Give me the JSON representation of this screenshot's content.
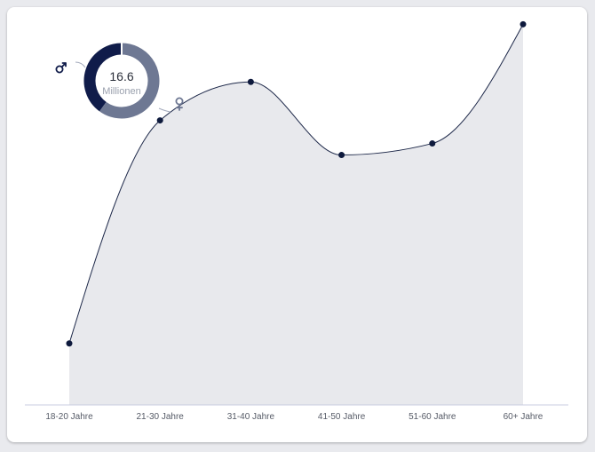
{
  "colors": {
    "background": "#e9eaee",
    "card": "#ffffff",
    "line": "#1c2748",
    "point": "#0e1a3d",
    "area": "#e8e9ed",
    "axis": "#c9cde0",
    "male": "#101c4a",
    "female": "#6e7893"
  },
  "icons": {
    "male": "male-symbol-icon",
    "female": "female-symbol-icon"
  },
  "chart_data": [
    {
      "type": "area",
      "categories": [
        "18-20 Jahre",
        "21-30 Jahre",
        "31-40 Jahre",
        "41-50 Jahre",
        "51-60 Jahre",
        "60+ Jahre"
      ],
      "values": [
        1.6,
        7.4,
        8.4,
        6.5,
        6.8,
        9.9
      ],
      "ylim": [
        0,
        10
      ],
      "grid": false,
      "legend": "none"
    },
    {
      "type": "pie",
      "subtype": "donut",
      "total_label": "16.6",
      "unit_label": "Millionen",
      "slices": [
        {
          "icon": "male-symbol-icon",
          "value": 0.4
        },
        {
          "icon": "female-symbol-icon",
          "value": 0.6
        }
      ]
    }
  ]
}
